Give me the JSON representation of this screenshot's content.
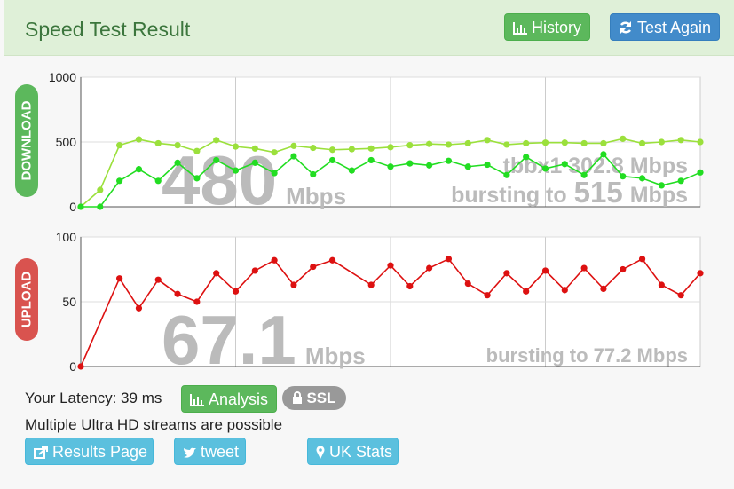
{
  "header": {
    "title": "Speed Test Result",
    "buttons": [
      "History",
      "Test Again"
    ]
  },
  "chart_data": [
    {
      "type": "line",
      "label": "DOWNLOAD",
      "label_color": "#5cb85c",
      "x": [
        0,
        1,
        2,
        3,
        4,
        5,
        6,
        7,
        8,
        9,
        10,
        11,
        12,
        13,
        14,
        15,
        16,
        17,
        18,
        19,
        20,
        21,
        22,
        23,
        24,
        25,
        26,
        27,
        28,
        29,
        30,
        31,
        32
      ],
      "xlim": [
        0,
        32
      ],
      "ylim": [
        0,
        1000
      ],
      "yticks": [
        0,
        500,
        1000
      ],
      "grid": true,
      "series": [
        {
          "color": "#9be03c",
          "values": [
            0,
            130,
            475,
            520,
            490,
            475,
            430,
            515,
            465,
            450,
            420,
            470,
            455,
            440,
            445,
            450,
            460,
            475,
            485,
            480,
            490,
            515,
            480,
            490,
            495,
            495,
            490,
            490,
            525,
            490,
            500,
            515,
            500
          ]
        },
        {
          "color": "#22dd22",
          "values": [
            0,
            0,
            200,
            290,
            200,
            340,
            220,
            360,
            280,
            340,
            260,
            390,
            250,
            360,
            280,
            360,
            310,
            335,
            320,
            355,
            310,
            325,
            245,
            385,
            295,
            330,
            245,
            405,
            235,
            220,
            165,
            200,
            265
          ]
        }
      ],
      "result": {
        "speed": "480",
        "unit": "Mbps",
        "server": "tbbx1 302.8 Mbps",
        "burst_prefix": "bursting to",
        "burst": "515",
        "burst_unit": "Mbps"
      }
    },
    {
      "type": "line",
      "label": "UPLOAD",
      "label_color": "#d9534f",
      "x": [
        0,
        2,
        3,
        4,
        5,
        6,
        7,
        8,
        9,
        10,
        11,
        12,
        13,
        15,
        16,
        17,
        18,
        19,
        20,
        21,
        22,
        23,
        24,
        25,
        26,
        27,
        28,
        29,
        30,
        31,
        32
      ],
      "xlim": [
        0,
        32
      ],
      "ylim": [
        0,
        100
      ],
      "yticks": [
        0,
        50,
        100
      ],
      "grid": true,
      "series": [
        {
          "color": "#dd1111",
          "values": [
            0,
            68,
            45,
            67,
            56,
            50,
            72,
            58,
            74,
            82,
            63,
            77,
            82,
            63,
            78,
            62,
            76,
            83,
            64,
            55,
            72,
            58,
            74,
            59,
            76,
            60,
            75,
            83,
            63,
            55,
            72
          ]
        }
      ],
      "result": {
        "speed": "67.1",
        "unit": "Mbps",
        "burst": "bursting to 77.2 Mbps"
      }
    }
  ],
  "info": {
    "latency": "Your Latency: 39 ms",
    "badges": [
      "Analysis",
      "SSL"
    ],
    "streams": "Multiple Ultra HD streams are possible"
  },
  "links": [
    "Results Page",
    "tweet",
    "UK Stats"
  ]
}
